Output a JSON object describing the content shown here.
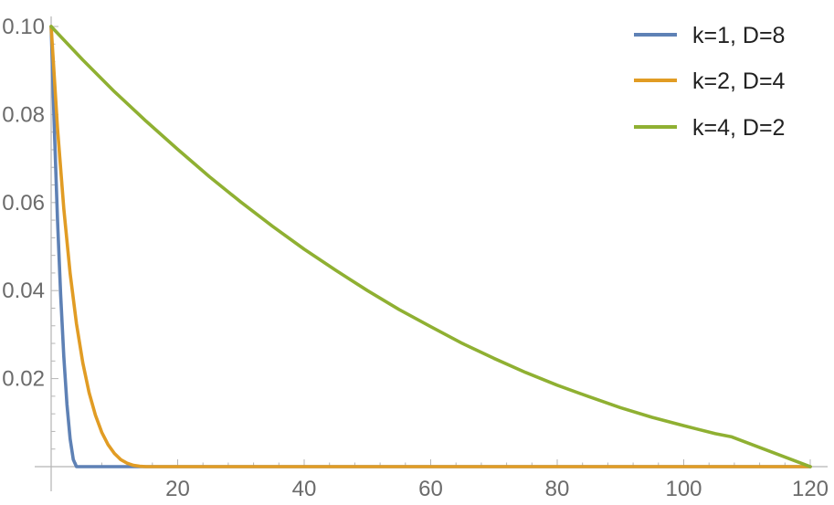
{
  "chart_data": {
    "type": "line",
    "xlim": [
      0,
      120
    ],
    "ylim": [
      0,
      0.1
    ],
    "x_ticks": [
      20,
      40,
      60,
      80,
      100,
      120
    ],
    "y_ticks": [
      0.02,
      0.04,
      0.06,
      0.08,
      0.1
    ],
    "x_tick_labels": [
      "20",
      "40",
      "60",
      "80",
      "100",
      "120"
    ],
    "y_tick_labels": [
      "0.02",
      "0.04",
      "0.06",
      "0.08",
      "0.10"
    ],
    "grid": false,
    "legend_position": "top-right",
    "series": [
      {
        "name": "k=1, D=8",
        "color": "#5e81b5",
        "x": [
          0,
          0.5,
          1,
          1.5,
          2,
          2.5,
          3,
          3.5,
          4,
          4.5,
          5,
          120
        ],
        "y": [
          0.1,
          0.077,
          0.0563,
          0.0391,
          0.025,
          0.0141,
          0.0063,
          0.0016,
          0.0,
          0.0,
          0.0,
          0.0
        ]
      },
      {
        "name": "k=2, D=4",
        "color": "#e19c24",
        "x": [
          0,
          1,
          2,
          3,
          4,
          5,
          6,
          7,
          8,
          9,
          10,
          11,
          12,
          13,
          14,
          15,
          16,
          120
        ],
        "y": [
          0.1,
          0.077,
          0.0586,
          0.0439,
          0.0325,
          0.0236,
          0.0168,
          0.0117,
          0.0078,
          0.005,
          0.003,
          0.0016,
          0.0008,
          0.0003,
          0.0001,
          0.0,
          0.0,
          0.0
        ]
      },
      {
        "name": "k=4, D=2",
        "color": "#8fb032",
        "x": [
          0,
          5,
          10,
          15,
          20,
          25,
          30,
          35,
          40,
          45,
          50,
          55,
          60,
          65,
          70,
          75,
          80,
          85,
          90,
          95,
          100,
          105,
          107.5,
          120
        ],
        "y": [
          0.1,
          0.0924,
          0.0852,
          0.0785,
          0.0721,
          0.0659,
          0.0601,
          0.0546,
          0.0494,
          0.0446,
          0.04,
          0.0357,
          0.0318,
          0.028,
          0.0246,
          0.0214,
          0.0185,
          0.0159,
          0.0134,
          0.0112,
          0.0093,
          0.0075,
          0.0068,
          0.0
        ]
      }
    ]
  }
}
